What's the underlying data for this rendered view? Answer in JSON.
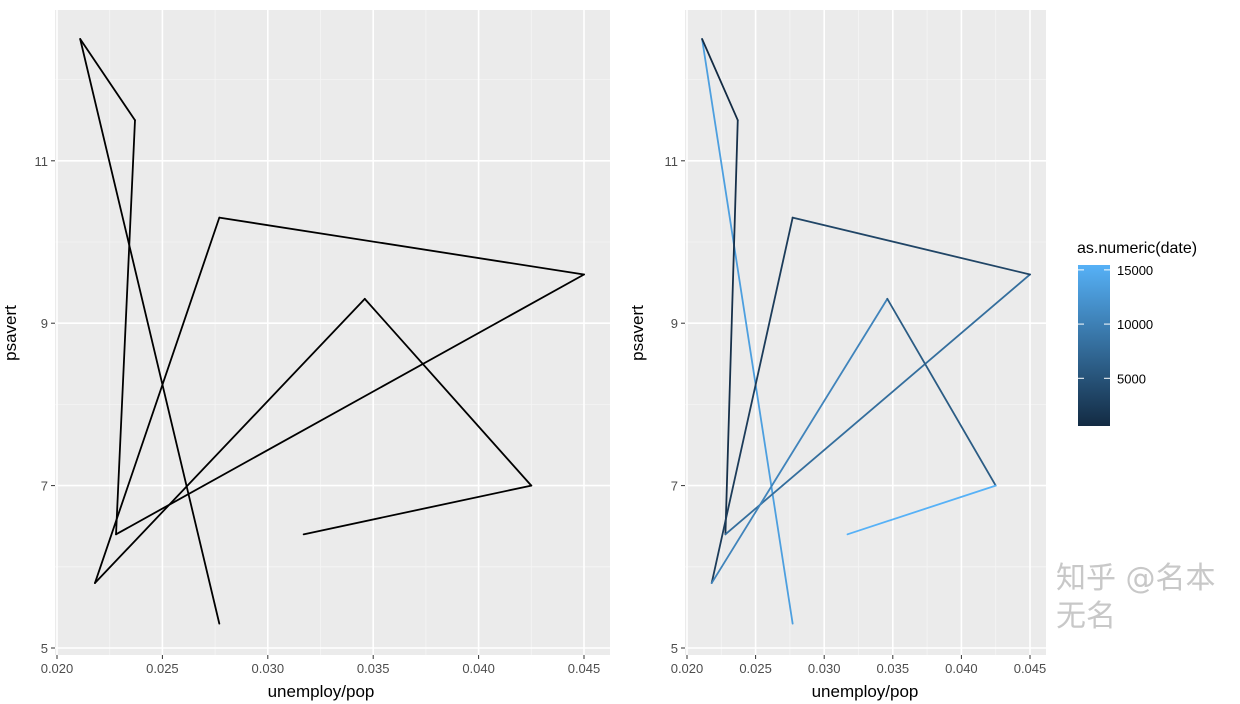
{
  "chart_data": [
    {
      "type": "line",
      "geom": "path",
      "xlabel": "unemploy/pop",
      "ylabel": "psavert",
      "xlim": [
        0.0195,
        0.0457
      ],
      "ylim": [
        4.95,
        12.85
      ],
      "x_ticks": [
        "0.020",
        "0.025",
        "0.030",
        "0.035",
        "0.040",
        "0.045"
      ],
      "y_ticks": [
        "5",
        "7",
        "9",
        "11"
      ],
      "grid": true,
      "line_color": "#000000",
      "points": [
        {
          "x": 0.0277,
          "y": 5.3
        },
        {
          "x": 0.0211,
          "y": 12.5
        },
        {
          "x": 0.0237,
          "y": 11.5
        },
        {
          "x": 0.0228,
          "y": 6.4
        },
        {
          "x": 0.045,
          "y": 9.6
        },
        {
          "x": 0.0277,
          "y": 10.3
        },
        {
          "x": 0.0218,
          "y": 5.8
        },
        {
          "x": 0.0346,
          "y": 9.3
        },
        {
          "x": 0.0425,
          "y": 7.0
        },
        {
          "x": 0.0317,
          "y": 6.4
        }
      ]
    },
    {
      "type": "line",
      "geom": "path",
      "xlabel": "unemploy/pop",
      "ylabel": "psavert",
      "xlim": [
        0.0195,
        0.0457
      ],
      "ylim": [
        4.95,
        12.85
      ],
      "x_ticks": [
        "0.020",
        "0.025",
        "0.030",
        "0.035",
        "0.040",
        "0.045"
      ],
      "y_ticks": [
        "5",
        "7",
        "9",
        "11"
      ],
      "grid": true,
      "color_legend": {
        "title": "as.numeric(date)",
        "labels": [
          "15000",
          "10000",
          "5000"
        ],
        "range": [
          600,
          15450
        ],
        "low_color": "#132B43",
        "high_color": "#56B1F7",
        "position": "right"
      },
      "points": [
        {
          "x": 0.0277,
          "y": 5.3,
          "color_value": 13500
        },
        {
          "x": 0.0211,
          "y": 12.5,
          "color_value": 600
        },
        {
          "x": 0.0237,
          "y": 11.5,
          "color_value": 1200
        },
        {
          "x": 0.0228,
          "y": 6.4,
          "color_value": 8000
        },
        {
          "x": 0.045,
          "y": 9.6,
          "color_value": 3500
        },
        {
          "x": 0.0277,
          "y": 10.3,
          "color_value": 2500
        },
        {
          "x": 0.0218,
          "y": 5.8,
          "color_value": 10500
        },
        {
          "x": 0.0346,
          "y": 9.3,
          "color_value": 6000
        },
        {
          "x": 0.0425,
          "y": 7.0,
          "color_value": 15450
        },
        {
          "x": 0.0317,
          "y": 6.4,
          "color_value": 12000
        }
      ]
    }
  ],
  "watermark": "知乎 @名本无名"
}
